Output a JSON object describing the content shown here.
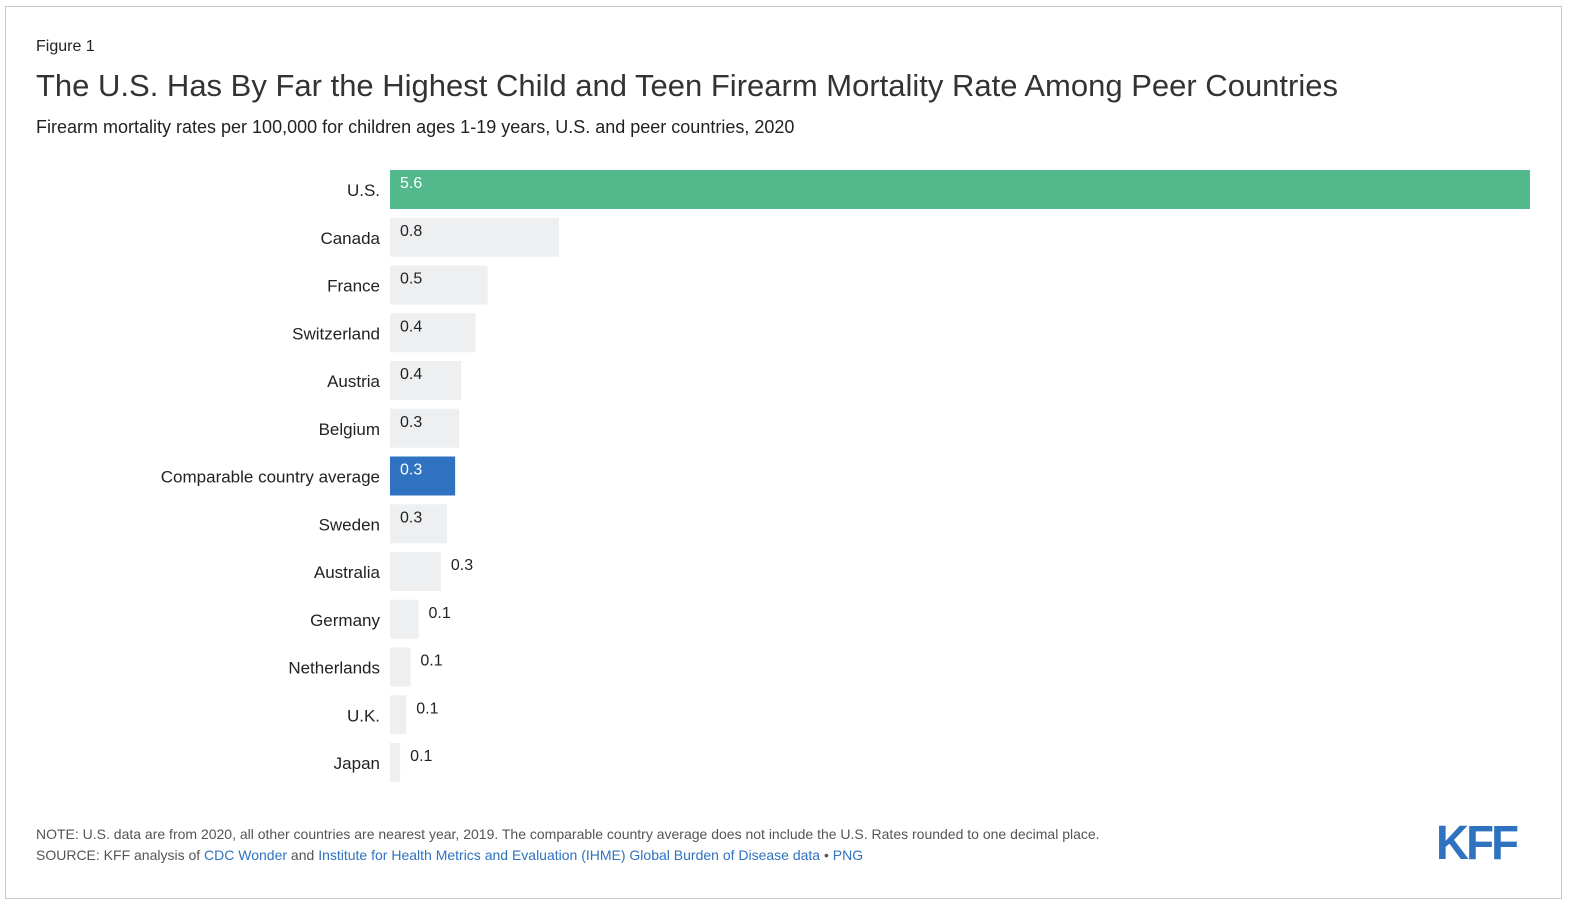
{
  "figure_label": "Figure 1",
  "chart_data": {
    "type": "bar",
    "orientation": "horizontal",
    "title": "The U.S. Has By Far the Highest Child and Teen Firearm Mortality Rate Among Peer Countries",
    "subtitle": "Firearm mortality rates per 100,000 for children ages 1-19 years, U.S. and peer countries, 2020",
    "xlabel": "",
    "ylabel": "",
    "xlim": [
      0,
      5.6
    ],
    "categories": [
      "U.S.",
      "Canada",
      "France",
      "Switzerland",
      "Austria",
      "Belgium",
      "Comparable country average",
      "Sweden",
      "Australia",
      "Germany",
      "Netherlands",
      "U.K.",
      "Japan"
    ],
    "values": [
      5.6,
      0.83,
      0.48,
      0.42,
      0.35,
      0.34,
      0.32,
      0.28,
      0.25,
      0.14,
      0.1,
      0.08,
      0.05
    ],
    "labels": [
      "5.6",
      "0.8",
      "0.5",
      "0.4",
      "0.4",
      "0.3",
      "0.3",
      "0.3",
      "0.3",
      "0.1",
      "0.1",
      "0.1",
      "0.1"
    ],
    "colors": {
      "us": "#53b98c",
      "average": "#2f72bf",
      "other": "#edeff1"
    }
  },
  "footer": {
    "note": "NOTE: U.S. data are from 2020, all other countries are nearest year, 2019. The comparable country average does not include the U.S. Rates rounded to one decimal place.",
    "source_prefix": "SOURCE: KFF analysis of ",
    "link1": "CDC Wonder",
    "and": " and ",
    "link2": "Institute for Health Metrics and Evaluation (IHME) Global Burden of Disease data",
    "bullet": " • ",
    "link3": "PNG"
  },
  "logo": "KFF"
}
